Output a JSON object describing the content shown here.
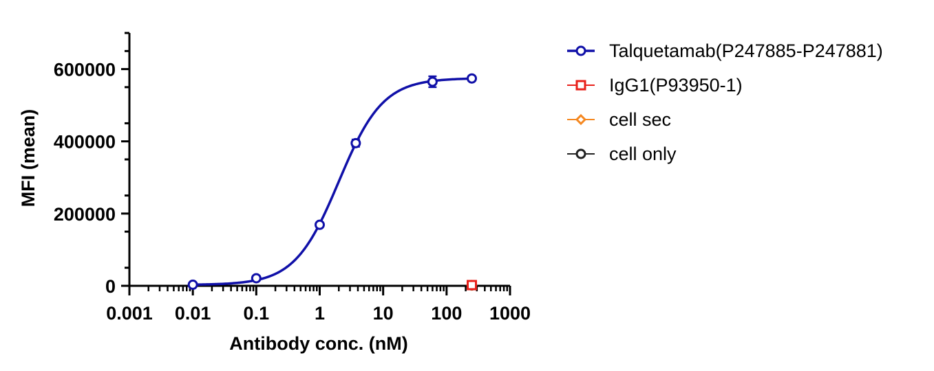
{
  "chart_data": {
    "type": "scatter",
    "xlabel": "Antibody conc. (nM)",
    "ylabel": "MFI (mean)",
    "x_scale": "log10",
    "xlim": [
      0.001,
      1000
    ],
    "ylim": [
      0,
      700000
    ],
    "x_ticks": [
      0.001,
      0.01,
      0.1,
      1,
      10,
      100,
      1000
    ],
    "x_tick_labels": [
      "0.001",
      "0.01",
      "0.1",
      "1",
      "10",
      "100",
      "1000"
    ],
    "y_ticks": [
      0,
      200000,
      400000,
      600000
    ],
    "y_tick_labels": [
      "0",
      "200000",
      "400000",
      "600000"
    ],
    "grid": false,
    "legend_position": "right",
    "series": [
      {
        "name": "Talquetamab(P247885-P247881)",
        "color": "#1010a8",
        "marker": "circle",
        "fit": "four-parameter logistic",
        "x": [
          0.01,
          0.1,
          1,
          3.7,
          60,
          250
        ],
        "y": [
          3000,
          21000,
          169000,
          395000,
          565000,
          574000
        ],
        "error": [
          0,
          0,
          0,
          10000,
          15000,
          0
        ]
      },
      {
        "name": "IgG1(P93950-1)",
        "color": "#e8201a",
        "marker": "square",
        "x": [
          250
        ],
        "y": [
          2000
        ]
      },
      {
        "name": "cell sec",
        "color": "#f5871f",
        "marker": "diamond",
        "x": [
          250
        ],
        "y": [
          1500
        ]
      },
      {
        "name": "cell only",
        "color": "#222222",
        "marker": "circle",
        "x": [
          250
        ],
        "y": [
          1000
        ]
      }
    ]
  }
}
